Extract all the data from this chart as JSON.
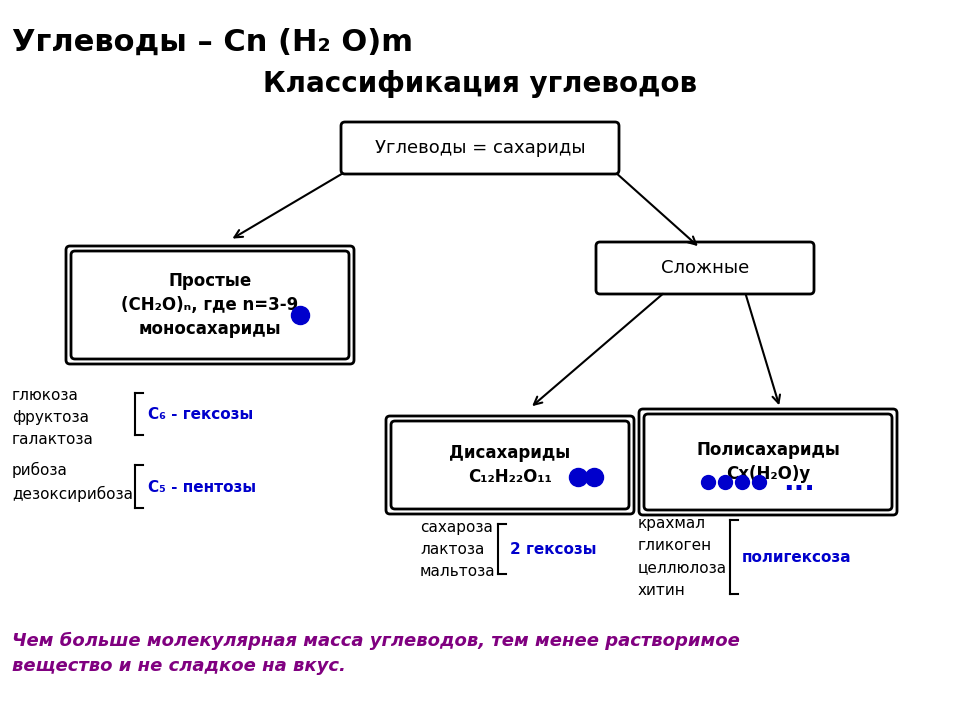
{
  "bg_color": "#ffffff",
  "box_edge_color": "#000000",
  "box_face_color": "#ffffff",
  "arrow_color": "#000000",
  "blue_color": "#0000cc",
  "purple_color": "#800080",
  "title_formula": "Углеводы – Cn (H₂ O)m",
  "title_main": "Классификация углеводов",
  "bottom_text": "Чем больше молекулярная масса углеводов, тем менее растворимое\nвещество и не сладкое на вкус.",
  "root_text": "Углеводы = сахариды",
  "simple_text": "Простые\n(CH₂O)ₙ, где n=3-9\nмоносахариды",
  "complex_text": "Сложные",
  "disach_text": "Дисахариды\nC₁₂H₂₂O₁₁",
  "polysach_text": "Полисахариды\nCx(H₂O)y",
  "c6_label": "C₆ - гексозы",
  "c5_label": "C₅ - пентозы",
  "hexoses2_label": "2 гексозы",
  "polygexose_label": "полигексоза",
  "glucosa_text": "глюкоза\nфруктоза\nгалактоза",
  "ribosa_text": "рибоза\nдезоксирибоза",
  "disach_examples": "сахароза\nлактоза\nмальтоза",
  "polysach_examples": "крахмал\nгликоген\nцеллюлоза\nхитин"
}
